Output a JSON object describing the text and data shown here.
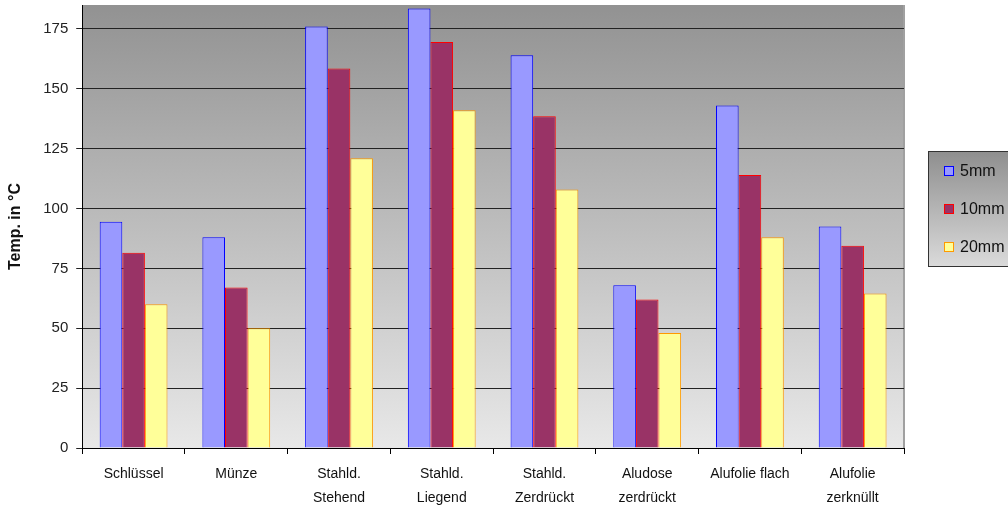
{
  "chart_data": {
    "type": "bar",
    "ylabel": "Temp. in °C",
    "categories": [
      "Schlüssel",
      "Münze",
      "Stahld. Stehend",
      "Stahld. Liegend",
      "Stahld. Zerdrückt",
      "Aludose zerdrückt",
      "Alufolie flach",
      "Alufolie zerknüllt"
    ],
    "series": [
      {
        "name": "5mm",
        "color": "#9999ff",
        "values": [
          94.5,
          88,
          176,
          183.5,
          164,
          68,
          143,
          92.5
        ]
      },
      {
        "name": "10mm",
        "color": "#993366",
        "values": [
          81.5,
          67,
          158.5,
          169.5,
          138.5,
          62,
          114,
          84.5
        ]
      },
      {
        "name": "20mm",
        "color": "#ffff99",
        "values": [
          60,
          50,
          121,
          141,
          108,
          48,
          88,
          64.5
        ]
      }
    ],
    "ylim": [
      0,
      185
    ],
    "yticks": [
      0,
      25,
      50,
      75,
      100,
      125,
      150,
      175
    ],
    "grid": "y",
    "legend": "right"
  }
}
